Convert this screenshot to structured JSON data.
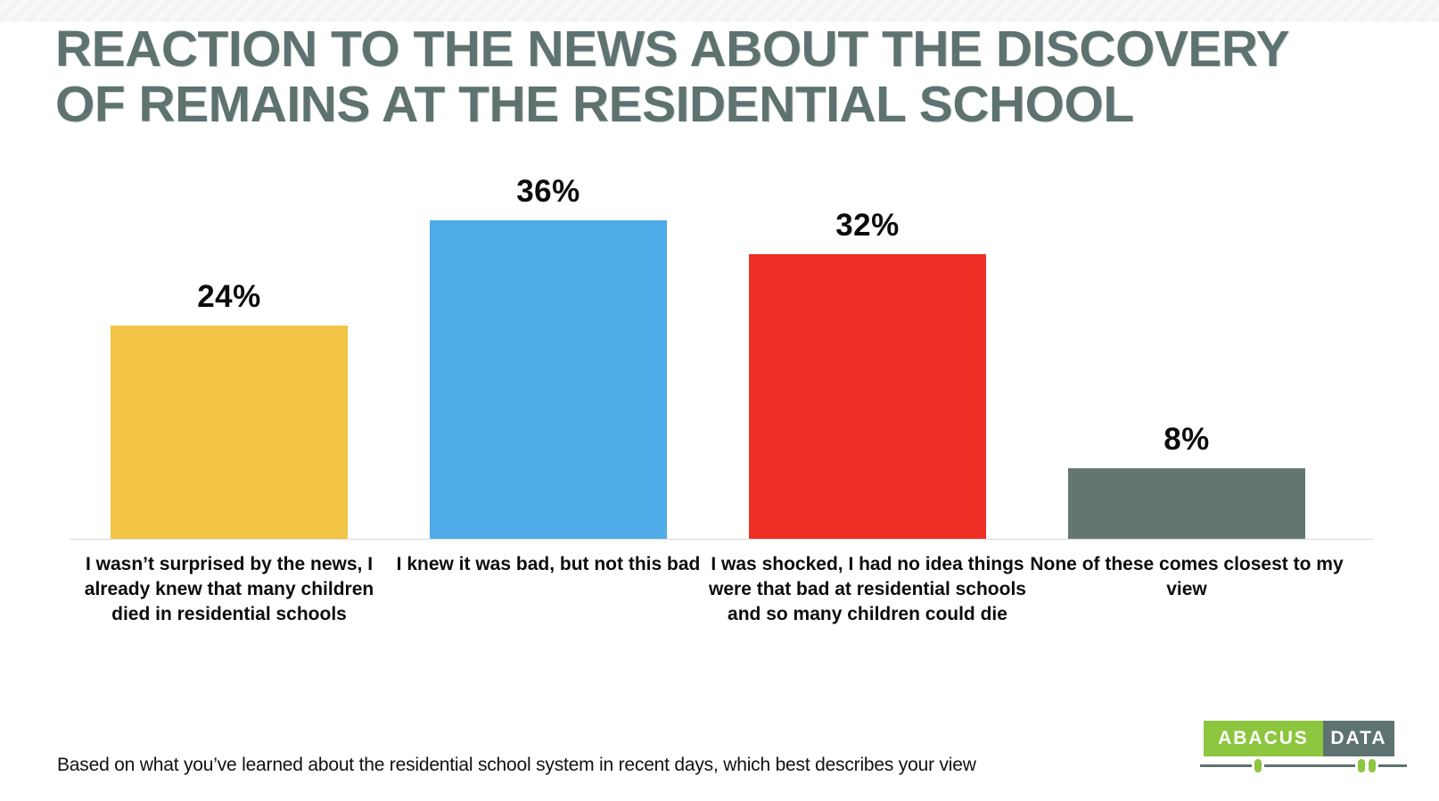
{
  "title": {
    "line1": "REACTION TO THE NEWS ABOUT THE DISCOVERY",
    "line2": "OF REMAINS AT THE RESIDENTIAL SCHOOL",
    "color": "#5e7370"
  },
  "chart_data": {
    "type": "bar",
    "title": "REACTION TO THE NEWS ABOUT THE DISCOVERY OF REMAINS AT THE RESIDENTIAL SCHOOL",
    "categories": [
      "I wasn’t surprised by the news, I already knew that many children died in residential schools",
      "I knew it was bad, but not this bad",
      "I was shocked, I had no idea things were that bad at residential schools and so many children could die",
      "None of these comes closest to my view"
    ],
    "values": [
      24,
      36,
      32,
      8
    ],
    "value_labels": [
      "24%",
      "36%",
      "32%",
      "8%"
    ],
    "colors": [
      "#f2c445",
      "#4face8",
      "#ee2e24",
      "#637672"
    ],
    "xlabel": "",
    "ylabel": "",
    "ylim": [
      0,
      40
    ],
    "grid": false,
    "legend": false,
    "value_label_position": "above-bar"
  },
  "footer": {
    "caption": "Based on what you’ve learned about the residential school system in recent days, which best describes your view"
  },
  "logo": {
    "brand_left": "ABACUS",
    "brand_right": "DATA",
    "green": "#8dc63f",
    "slate": "#5e7370"
  }
}
